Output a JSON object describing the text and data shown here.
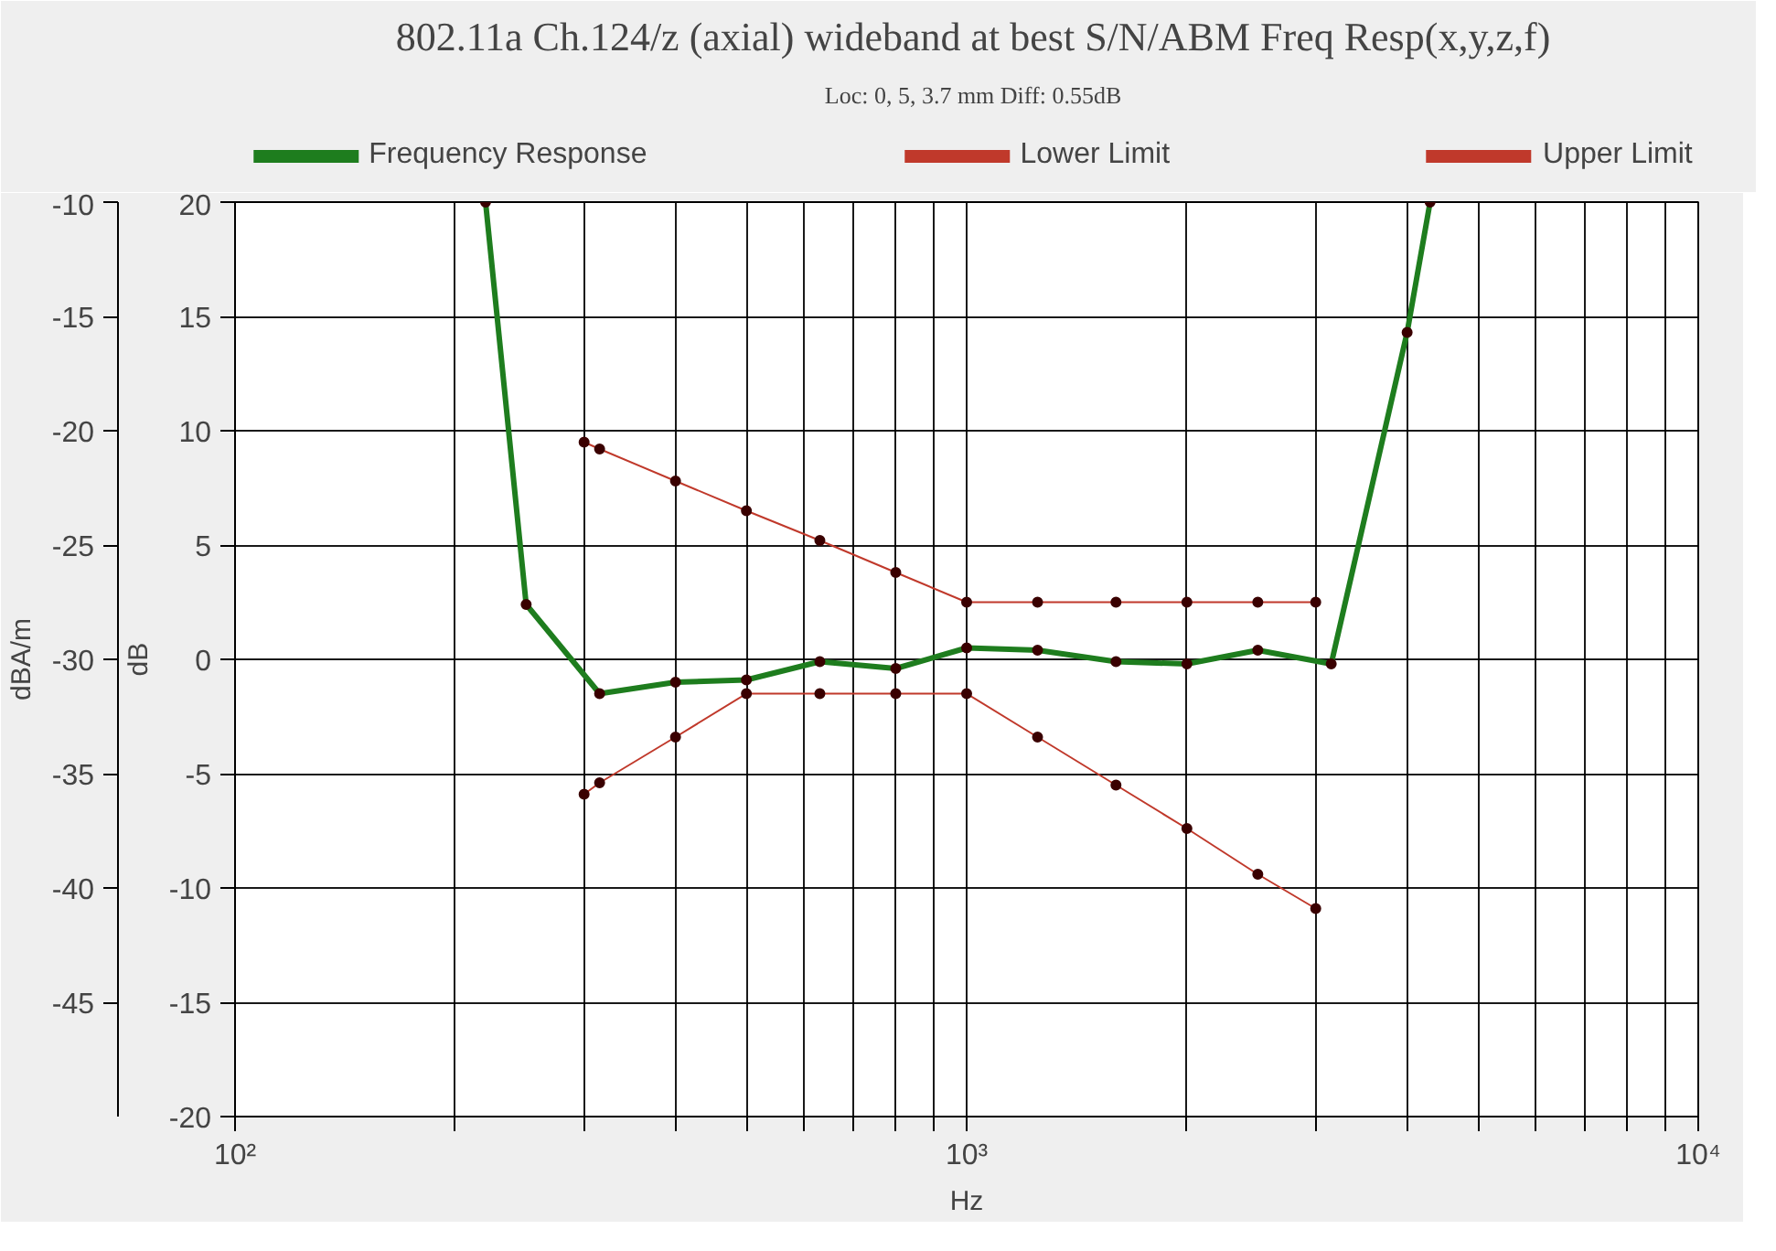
{
  "chart_data": {
    "type": "line",
    "title": "802.11a Ch.124/z (axial) wideband at best S/N/ABM Freq Resp(x,y,z,f)",
    "subtitle": "Loc: 0, 5, 3.7 mm Diff: 0.55dB",
    "xlabel": "Hz",
    "ylabel": "dB",
    "y2label": "dBA/m",
    "log": "x",
    "grid": true,
    "legend": "top",
    "marker": "circle",
    "line_style": "solid",
    "xlim": [
      100,
      10000
    ],
    "ylim": [
      -20,
      20
    ],
    "y2lim": [
      -50,
      -10
    ],
    "xticks": [
      {
        "value": 100,
        "label": "10²"
      },
      {
        "value": 200,
        "label": null
      },
      {
        "value": 300,
        "label": null
      },
      {
        "value": 400,
        "label": null
      },
      {
        "value": 500,
        "label": null
      },
      {
        "value": 600,
        "label": null
      },
      {
        "value": 700,
        "label": null
      },
      {
        "value": 800,
        "label": null
      },
      {
        "value": 900,
        "label": null
      },
      {
        "value": 1000,
        "label": "10³"
      },
      {
        "value": 2000,
        "label": null
      },
      {
        "value": 3000,
        "label": null
      },
      {
        "value": 4000,
        "label": null
      },
      {
        "value": 5000,
        "label": null
      },
      {
        "value": 6000,
        "label": null
      },
      {
        "value": 7000,
        "label": null
      },
      {
        "value": 8000,
        "label": null
      },
      {
        "value": 9000,
        "label": null
      },
      {
        "value": 10000,
        "label": "10⁴"
      }
    ],
    "yticks": [
      -20,
      -15,
      -10,
      -5,
      0,
      5,
      10,
      15,
      20
    ],
    "y2ticks": [
      -45,
      -40,
      -35,
      -30,
      -25,
      -20,
      -15,
      -10
    ],
    "series": [
      {
        "name": "Frequency Response",
        "color": "#1e7d1e",
        "x": [
          220,
          250,
          315,
          400,
          500,
          630,
          800,
          1000,
          1250,
          1600,
          2000,
          2500,
          3150,
          4000,
          4300
        ],
        "values": [
          20,
          2.4,
          -1.5,
          -1.0,
          -0.9,
          -0.1,
          -0.4,
          0.5,
          0.4,
          -0.1,
          -0.2,
          0.4,
          -0.2,
          14.3,
          20
        ]
      },
      {
        "name": "Lower Limit",
        "color": "#c0392b",
        "x": [
          300,
          315,
          400,
          500,
          630,
          800,
          1000,
          1250,
          1600,
          2000,
          2500,
          3000
        ],
        "values": [
          -5.9,
          -5.4,
          -3.4,
          -1.5,
          -1.5,
          -1.5,
          -1.5,
          -3.4,
          -5.5,
          -7.4,
          -9.4,
          -10.9
        ]
      },
      {
        "name": "Upper Limit",
        "color": "#c0392b",
        "x": [
          300,
          315,
          400,
          500,
          630,
          800,
          1000,
          1250,
          1600,
          2000,
          2500,
          3000
        ],
        "values": [
          9.5,
          9.2,
          7.8,
          6.5,
          5.2,
          3.8,
          2.5,
          2.5,
          2.5,
          2.5,
          2.5,
          2.5
        ]
      }
    ]
  }
}
